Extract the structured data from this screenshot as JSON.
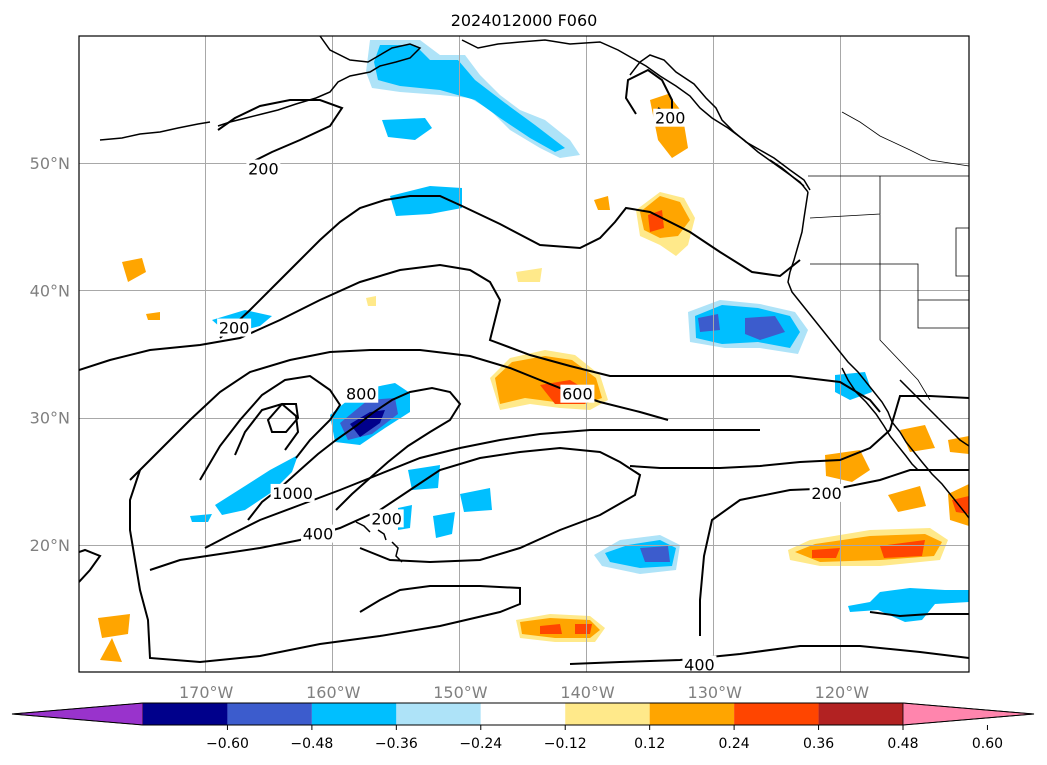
{
  "title": "2024012000 F060",
  "map": {
    "lat_labels": [
      {
        "text": "50°N",
        "lat": 50
      },
      {
        "text": "40°N",
        "lat": 40
      },
      {
        "text": "30°N",
        "lat": 30
      },
      {
        "text": "20°N",
        "lat": 20
      }
    ],
    "lon_labels": [
      {
        "text": "170°W",
        "lon": -170
      },
      {
        "text": "160°W",
        "lon": -160
      },
      {
        "text": "150°W",
        "lon": -150
      },
      {
        "text": "140°W",
        "lon": -140
      },
      {
        "text": "130°W",
        "lon": -130
      },
      {
        "text": "120°W",
        "lon": -120
      }
    ],
    "extent": {
      "lon_min": -180,
      "lon_max": -110,
      "lat_min": 10,
      "lat_max": 60
    },
    "grid": true,
    "contour_labels": [
      {
        "text": "200",
        "lon": -165.5,
        "lat": 49.5
      },
      {
        "text": "200",
        "lon": -133.5,
        "lat": 53.5
      },
      {
        "text": "200",
        "lon": -167.8,
        "lat": 37.0
      },
      {
        "text": "800",
        "lon": -157.8,
        "lat": 31.8
      },
      {
        "text": "600",
        "lon": -140.8,
        "lat": 31.8
      },
      {
        "text": "1000",
        "lon": -163.2,
        "lat": 24.0
      },
      {
        "text": "400",
        "lon": -161.2,
        "lat": 20.8
      },
      {
        "text": "200",
        "lon": -155.8,
        "lat": 22.0
      },
      {
        "text": "200",
        "lon": -121.2,
        "lat": 24.0
      },
      {
        "text": "400",
        "lon": -131.2,
        "lat": 10.5
      }
    ]
  },
  "colorbar": {
    "ticks": [
      "−0.60",
      "−0.48",
      "−0.36",
      "−0.24",
      "−0.12",
      "0.12",
      "0.24",
      "0.36",
      "0.48",
      "0.60"
    ],
    "colors": [
      "#9933cc",
      "#00008b",
      "#3c5ccd",
      "#00bfff",
      "#aee3f8",
      "#ffffff",
      "#ffe98a",
      "#ffa500",
      "#ff4500",
      "#b22222",
      "#ff85ad"
    ]
  }
}
